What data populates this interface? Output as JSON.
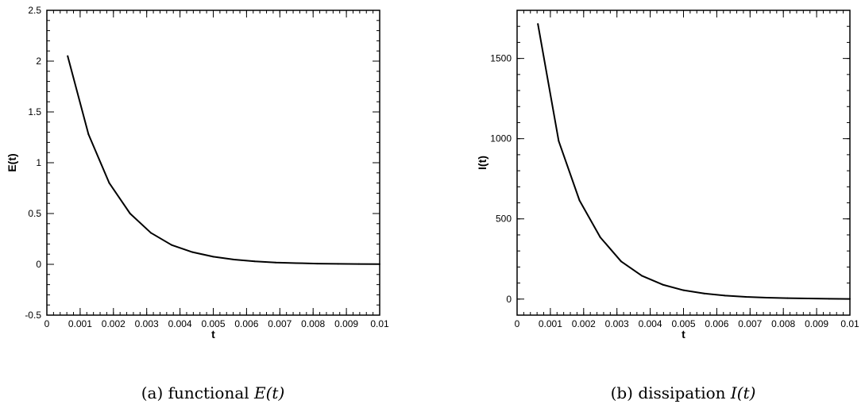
{
  "chart_data": [
    {
      "type": "line",
      "xlabel": "t",
      "ylabel": "E(t)",
      "xlim": [
        0,
        0.01
      ],
      "ylim": [
        -0.5,
        2.5
      ],
      "x_ticks": [
        0,
        0.001,
        0.002,
        0.003,
        0.004,
        0.005,
        0.006,
        0.007,
        0.008,
        0.009,
        0.01
      ],
      "x_tick_labels": [
        "0",
        "0.001",
        "0.002",
        "0.003",
        "0.004",
        "0.005",
        "0.006",
        "0.007",
        "0.008",
        "0.009",
        "0.01"
      ],
      "x_minor_step": 0.0002,
      "y_ticks": [
        -0.5,
        0,
        0.5,
        1,
        1.5,
        2,
        2.5
      ],
      "y_tick_labels": [
        "-0.5",
        "0",
        "0.5",
        "1",
        "1.5",
        "2",
        "2.5"
      ],
      "y_minor_step": 0.1,
      "grid": false,
      "series": [
        {
          "x": [
            0.000625,
            0.00125,
            0.001875,
            0.0025,
            0.003125,
            0.00375,
            0.004375,
            0.005,
            0.005625,
            0.00625,
            0.006875,
            0.0075,
            0.008125,
            0.00875,
            0.009375,
            0.01
          ],
          "values": [
            2.05,
            1.28,
            0.8,
            0.5,
            0.31,
            0.19,
            0.12,
            0.075,
            0.047,
            0.029,
            0.018,
            0.012,
            0.007,
            0.005,
            0.003,
            0.002
          ]
        }
      ],
      "caption": {
        "prefix": "(a) functional ",
        "math": "E(t)"
      }
    },
    {
      "type": "line",
      "xlabel": "t",
      "ylabel": "I(t)",
      "xlim": [
        0,
        0.01
      ],
      "ylim": [
        -100,
        1800
      ],
      "x_ticks": [
        0,
        0.001,
        0.002,
        0.003,
        0.004,
        0.005,
        0.006,
        0.007,
        0.008,
        0.009,
        0.01
      ],
      "x_tick_labels": [
        "0",
        "0.001",
        "0.002",
        "0.003",
        "0.004",
        "0.005",
        "0.006",
        "0.007",
        "0.008",
        "0.009",
        "0.01"
      ],
      "x_minor_step": 0.0002,
      "y_ticks": [
        0,
        500,
        1000,
        1500
      ],
      "y_tick_labels": [
        "0",
        "500",
        "1000",
        "1500"
      ],
      "y_minor_step": 100,
      "grid": false,
      "series": [
        {
          "x": [
            0.000625,
            0.00125,
            0.001875,
            0.0025,
            0.003125,
            0.00375,
            0.004375,
            0.005,
            0.005625,
            0.00625,
            0.006875,
            0.0075,
            0.008125,
            0.00875,
            0.009375,
            0.01
          ],
          "values": [
            1715,
            985,
            615,
            385,
            235,
            145,
            90,
            55,
            35,
            22,
            14,
            9,
            6,
            4,
            2,
            1
          ]
        }
      ],
      "caption": {
        "prefix": "(b) dissipation ",
        "math": "I(t)"
      }
    }
  ]
}
